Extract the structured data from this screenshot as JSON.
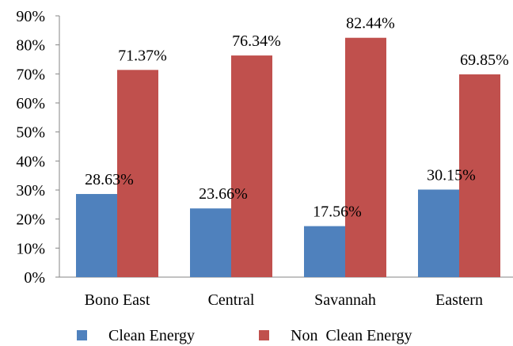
{
  "chart_data": {
    "type": "bar",
    "title": "",
    "xlabel": "",
    "ylabel": "",
    "categories": [
      "Bono East",
      "Central",
      "Savannah",
      "Eastern"
    ],
    "ylim": [
      0,
      90
    ],
    "yticks": [
      "0%",
      "10%",
      "20%",
      "30%",
      "40%",
      "50%",
      "60%",
      "70%",
      "80%",
      "90%"
    ],
    "grid": false,
    "legend_position": "bottom",
    "series": [
      {
        "name": "Clean Energy",
        "color": "#4f81bd",
        "values": [
          28.63,
          23.66,
          17.56,
          30.15
        ],
        "labels": [
          "28.63%",
          "23.66%",
          "17.56%",
          "30.15%"
        ]
      },
      {
        "name": "Non  Clean Energy",
        "color": "#c0504d",
        "values": [
          71.37,
          76.34,
          82.44,
          69.85
        ],
        "labels": [
          "71.37%",
          "76.34%",
          "82.44%",
          "69.85%"
        ]
      }
    ]
  }
}
